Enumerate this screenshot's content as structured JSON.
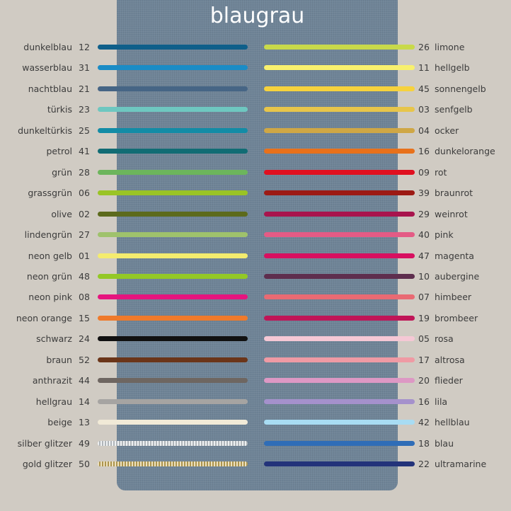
{
  "title": "blaugrau",
  "panel_color": "#6f8497",
  "left": [
    {
      "name": "dunkelblau",
      "num": "12",
      "color": "#0f5f8a"
    },
    {
      "name": "wasserblau",
      "num": "31",
      "color": "#1a8cc6"
    },
    {
      "name": "nachtblau",
      "num": "21",
      "color": "#466585"
    },
    {
      "name": "türkis",
      "num": "23",
      "color": "#6ec7c0"
    },
    {
      "name": "dunkeltürkis",
      "num": "25",
      "color": "#138ca6"
    },
    {
      "name": "petrol",
      "num": "41",
      "color": "#116c74"
    },
    {
      "name": "grün",
      "num": "28",
      "color": "#6cb55c"
    },
    {
      "name": "grassgrün",
      "num": "06",
      "color": "#9ac425"
    },
    {
      "name": "olive",
      "num": "02",
      "color": "#5c6a1c"
    },
    {
      "name": "lindengrün",
      "num": "27",
      "color": "#9fc26c"
    },
    {
      "name": "neon gelb",
      "num": "01",
      "color": "#f4ec6e"
    },
    {
      "name": "neon grün",
      "num": "48",
      "color": "#93c826"
    },
    {
      "name": "neon pink",
      "num": "08",
      "color": "#e6147e"
    },
    {
      "name": "neon orange",
      "num": "15",
      "color": "#ef7a2b"
    },
    {
      "name": "schwarz",
      "num": "24",
      "color": "#111111"
    },
    {
      "name": "braun",
      "num": "52",
      "color": "#6b3519"
    },
    {
      "name": "anthrazit",
      "num": "44",
      "color": "#6e6661"
    },
    {
      "name": "hellgrau",
      "num": "14",
      "color": "#a6a4a2"
    },
    {
      "name": "beige",
      "num": "13",
      "color": "#f1ead7"
    },
    {
      "name": "silber glitzer",
      "num": "49",
      "color": "#d6dde2"
    },
    {
      "name": "gold glitzer",
      "num": "50",
      "color": "#d2b45e"
    }
  ],
  "right": [
    {
      "name": "limone",
      "num": "26",
      "color": "#c8d94a"
    },
    {
      "name": "hellgelb",
      "num": "11",
      "color": "#f8f06e"
    },
    {
      "name": "sonnengelb",
      "num": "45",
      "color": "#f6d23d"
    },
    {
      "name": "senfgelb",
      "num": "03",
      "color": "#e7c54a"
    },
    {
      "name": "ocker",
      "num": "04",
      "color": "#cfa745"
    },
    {
      "name": "dunkelorange",
      "num": "16",
      "color": "#e8711b"
    },
    {
      "name": "rot",
      "num": "09",
      "color": "#e01020"
    },
    {
      "name": "braunrot",
      "num": "39",
      "color": "#9c1a14"
    },
    {
      "name": "weinrot",
      "num": "29",
      "color": "#a8144d"
    },
    {
      "name": "pink",
      "num": "40",
      "color": "#e45b85"
    },
    {
      "name": "magenta",
      "num": "47",
      "color": "#d80f60"
    },
    {
      "name": "aubergine",
      "num": "10",
      "color": "#5e2e4e"
    },
    {
      "name": "himbeer",
      "num": "07",
      "color": "#e96a73"
    },
    {
      "name": "brombeer",
      "num": "19",
      "color": "#c01557"
    },
    {
      "name": "rosa",
      "num": "05",
      "color": "#f5c8d5"
    },
    {
      "name": "altrosa",
      "num": "17",
      "color": "#ef9aa4"
    },
    {
      "name": "flieder",
      "num": "20",
      "color": "#dd98c4"
    },
    {
      "name": "lila",
      "num": "16",
      "color": "#a591cc"
    },
    {
      "name": "hellblau",
      "num": "42",
      "color": "#a8dcf3"
    },
    {
      "name": "blau",
      "num": "18",
      "color": "#2f6db7"
    },
    {
      "name": "ultramarine",
      "num": "22",
      "color": "#23337a"
    }
  ]
}
